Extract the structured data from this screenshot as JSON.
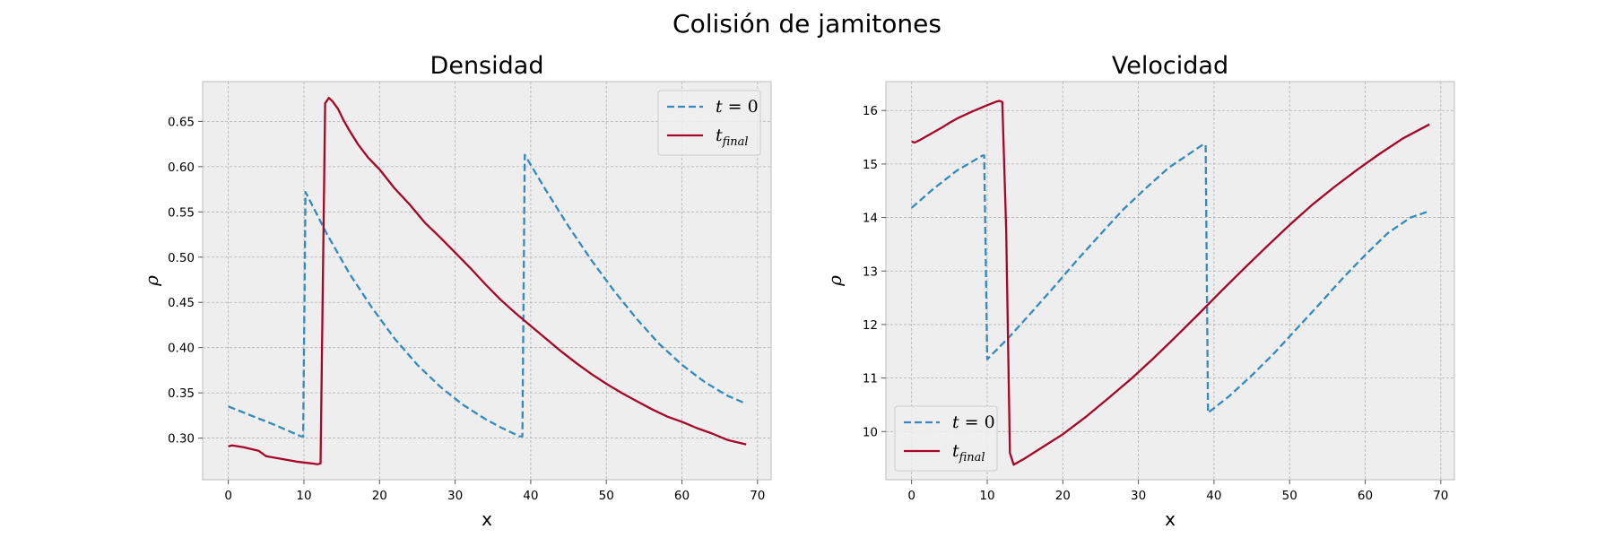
{
  "figure": {
    "title": "Colisión de jamitones"
  },
  "colors": {
    "series_t0": "#348ABD",
    "series_final": "#A60628",
    "axes_bg": "#EEEEEE",
    "grid": "#B2B2B2",
    "spine": "#BCBCBC"
  },
  "chart_data": [
    {
      "type": "line",
      "title": "Densidad",
      "xlabel": "x",
      "ylabel": "ρ",
      "xlim": [
        -3.4,
        71.8
      ],
      "ylim": [
        0.254,
        0.694
      ],
      "xticks": [
        0,
        10,
        20,
        30,
        40,
        50,
        60,
        70
      ],
      "yticks": [
        0.3,
        0.35,
        0.4,
        0.45,
        0.5,
        0.55,
        0.6,
        0.65
      ],
      "ytick_labels": [
        "0.30",
        "0.35",
        "0.40",
        "0.45",
        "0.50",
        "0.55",
        "0.60",
        "0.65"
      ],
      "grid": true,
      "legend": {
        "position": "top-right"
      },
      "series": [
        {
          "name": "t=0",
          "label_main": "t",
          "label_rest": " = 0",
          "label_sub": "",
          "style": "dashed",
          "x": [
            0,
            3,
            6,
            9.6,
            9.9,
            10.2,
            13,
            16,
            19,
            22,
            25,
            28,
            31,
            34,
            36,
            38.5,
            38.9,
            39.2,
            42,
            45,
            48,
            51,
            54,
            57,
            60,
            63,
            66,
            68.5
          ],
          "y": [
            0.335,
            0.325,
            0.315,
            0.302,
            0.302,
            0.572,
            0.526,
            0.482,
            0.444,
            0.41,
            0.381,
            0.357,
            0.337,
            0.321,
            0.312,
            0.302,
            0.302,
            0.613,
            0.574,
            0.534,
            0.497,
            0.463,
            0.432,
            0.404,
            0.381,
            0.362,
            0.347,
            0.338
          ]
        },
        {
          "name": "t_final",
          "label_main": "t",
          "label_rest": "",
          "label_sub": "final",
          "style": "solid",
          "x": [
            0,
            0.5,
            2,
            4,
            5,
            7,
            9,
            11,
            11.8,
            12.2,
            12.8,
            13.3,
            13.8,
            14.5,
            15.2,
            16,
            17.2,
            18.5,
            20,
            22,
            24,
            26,
            28,
            30,
            32,
            34,
            36,
            38,
            40,
            42,
            44,
            46,
            48,
            50,
            52,
            54,
            56,
            58,
            60,
            62,
            64,
            66,
            68.5
          ],
          "y": [
            0.291,
            0.292,
            0.29,
            0.286,
            0.28,
            0.277,
            0.274,
            0.272,
            0.271,
            0.272,
            0.67,
            0.676,
            0.672,
            0.664,
            0.652,
            0.64,
            0.624,
            0.61,
            0.597,
            0.576,
            0.558,
            0.538,
            0.522,
            0.505,
            0.488,
            0.47,
            0.453,
            0.438,
            0.424,
            0.41,
            0.396,
            0.383,
            0.371,
            0.36,
            0.35,
            0.341,
            0.332,
            0.324,
            0.318,
            0.311,
            0.305,
            0.298,
            0.293
          ]
        }
      ]
    },
    {
      "type": "line",
      "title": "Velocidad",
      "xlabel": "x",
      "ylabel": "ρ",
      "xlim": [
        -3.4,
        71.8
      ],
      "ylim": [
        9.1,
        16.54
      ],
      "xticks": [
        0,
        10,
        20,
        30,
        40,
        50,
        60,
        70
      ],
      "yticks": [
        10,
        11,
        12,
        13,
        14,
        15,
        16
      ],
      "ytick_labels": [
        "10",
        "11",
        "12",
        "13",
        "14",
        "15",
        "16"
      ],
      "grid": true,
      "legend": {
        "position": "bottom-left"
      },
      "series": [
        {
          "name": "t=0",
          "label_main": "t",
          "label_rest": " = 0",
          "label_sub": "",
          "style": "dashed",
          "x": [
            0,
            3,
            6,
            9.4,
            9.6,
            10,
            13,
            16,
            19,
            22,
            25,
            28,
            31,
            34,
            36,
            38.5,
            38.9,
            39.2,
            42,
            45,
            48,
            51,
            54,
            57,
            60,
            63,
            66,
            68.5
          ],
          "y": [
            14.18,
            14.55,
            14.88,
            15.16,
            15.16,
            11.35,
            11.78,
            12.25,
            12.73,
            13.22,
            13.69,
            14.15,
            14.55,
            14.93,
            15.12,
            15.36,
            15.36,
            10.35,
            10.66,
            11.05,
            11.47,
            11.93,
            12.39,
            12.86,
            13.3,
            13.71,
            14.0,
            14.12
          ]
        },
        {
          "name": "t_final",
          "label_main": "t",
          "label_rest": "",
          "label_sub": "final",
          "style": "solid",
          "x": [
            0,
            0.4,
            1,
            2,
            4,
            5,
            6,
            8,
            10,
            11.3,
            11.6,
            12,
            12.5,
            13,
            13.5,
            15,
            17,
            20,
            23,
            26,
            29,
            32,
            35,
            38,
            41,
            44,
            47,
            50,
            53,
            56,
            59,
            62,
            65,
            68.5
          ],
          "y": [
            15.42,
            15.4,
            15.44,
            15.52,
            15.68,
            15.77,
            15.85,
            15.98,
            16.1,
            16.17,
            16.18,
            16.16,
            13.8,
            9.6,
            9.38,
            9.5,
            9.68,
            9.95,
            10.27,
            10.62,
            10.98,
            11.37,
            11.78,
            12.2,
            12.63,
            13.05,
            13.46,
            13.86,
            14.24,
            14.58,
            14.9,
            15.2,
            15.48,
            15.74
          ]
        }
      ]
    }
  ]
}
